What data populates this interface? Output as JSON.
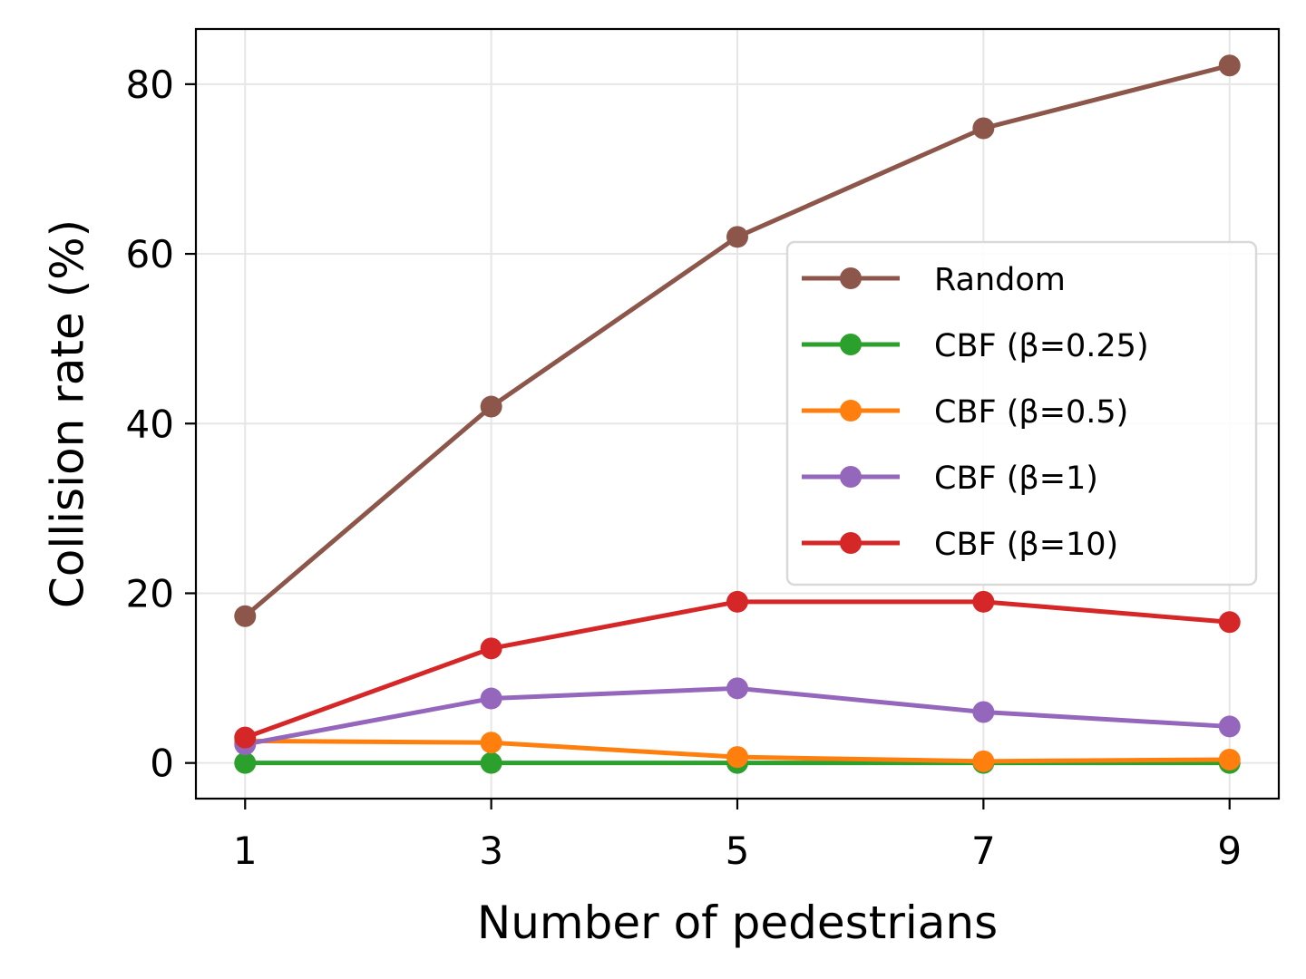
{
  "chart_data": {
    "type": "line",
    "x": [
      1,
      3,
      5,
      7,
      9
    ],
    "xticks": [
      1,
      3,
      5,
      7,
      9
    ],
    "yticks": [
      0,
      20,
      40,
      60,
      80
    ],
    "xlabel": "Number of pedestrians",
    "ylabel": "Collision rate (%)",
    "xlim": [
      0.6,
      9.4
    ],
    "ylim": [
      -4.2,
      86.5
    ],
    "grid": true,
    "legend_position": "right",
    "series": [
      {
        "name": "Random",
        "color": "#8c564b",
        "values": [
          17.3,
          42.0,
          62.0,
          74.8,
          82.2
        ]
      },
      {
        "name": "CBF (β=0.25)",
        "color": "#2ca02c",
        "values": [
          0.0,
          0.0,
          0.0,
          0.0,
          0.0
        ]
      },
      {
        "name": "CBF (β=0.5)",
        "color": "#ff7f0e",
        "values": [
          2.6,
          2.4,
          0.7,
          0.2,
          0.4
        ]
      },
      {
        "name": "CBF (β=1)",
        "color": "#9467bd",
        "values": [
          2.2,
          7.6,
          8.8,
          6.0,
          4.3
        ]
      },
      {
        "name": "CBF (β=10)",
        "color": "#d62728",
        "values": [
          3.0,
          13.5,
          19.0,
          19.0,
          16.6
        ]
      }
    ]
  }
}
